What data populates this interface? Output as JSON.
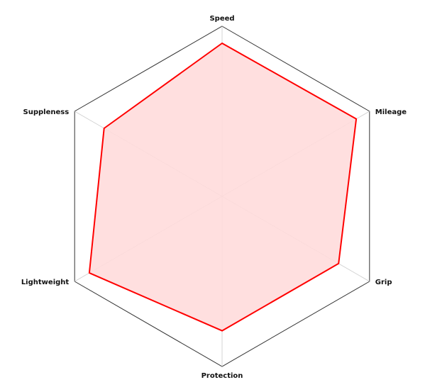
{
  "chart_data": {
    "type": "radar",
    "axes": [
      "Speed",
      "Mileage",
      "Grip",
      "Protection",
      "Lightweight",
      "Suppleness"
    ],
    "series": [
      {
        "values": [
          0.9,
          0.91,
          0.79,
          0.79,
          0.9,
          0.8
        ]
      }
    ],
    "range": [
      0,
      1
    ],
    "grid": "outer-hexagon-and-spokes",
    "colors": {
      "series_stroke": "#ff0000",
      "series_fill": "#ffdcdc",
      "frame": "#333333",
      "spokes": "#cccccc"
    }
  }
}
